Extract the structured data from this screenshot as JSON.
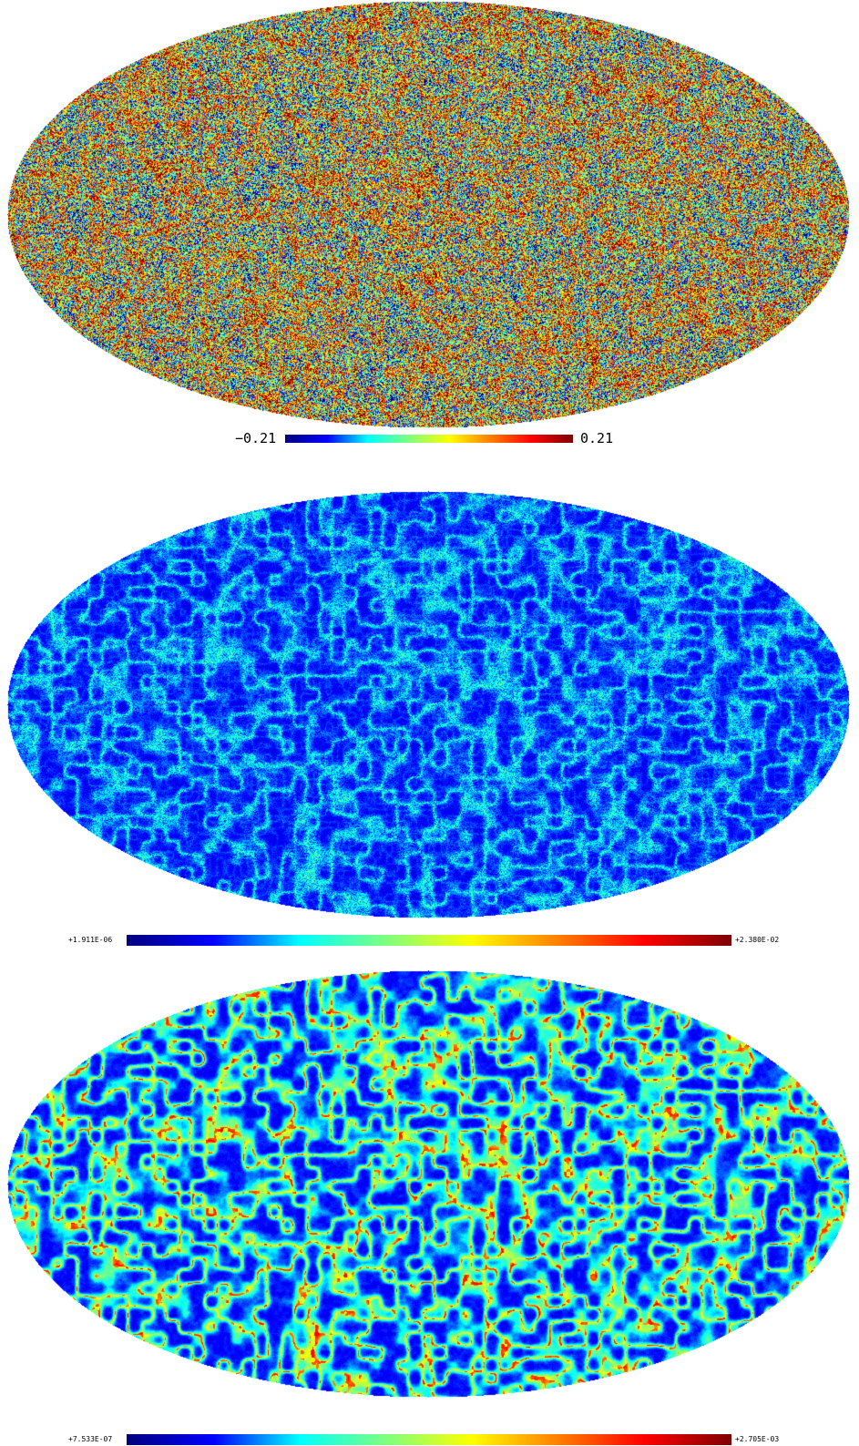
{
  "maps": [
    {
      "colormap": "jet",
      "style": "noise",
      "colorbar": {
        "min_label": "−0.21",
        "max_label": "0.21"
      }
    },
    {
      "colormap": "jet",
      "style": "dark-filaments",
      "colorbar": {
        "min_label": "+1.911E-06",
        "max_label": "+2.380E-02"
      }
    },
    {
      "colormap": "jet",
      "style": "bright-filaments",
      "colorbar": {
        "min_label": "+7.533E-07",
        "max_label": "+2.705E-03"
      }
    }
  ],
  "colors": {
    "jet_stops": [
      "#00007f",
      "#0000ff",
      "#00ffff",
      "#7fff7f",
      "#ffff00",
      "#ff7f00",
      "#ff0000",
      "#7f0000"
    ]
  }
}
